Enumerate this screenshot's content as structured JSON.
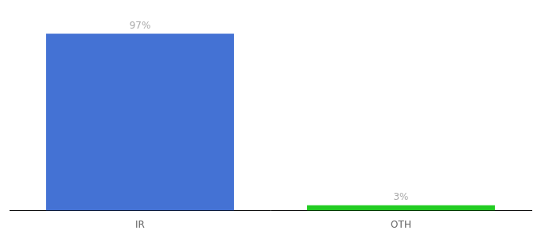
{
  "chart_data": {
    "type": "bar",
    "categories": [
      "IR",
      "OTH"
    ],
    "values": [
      97,
      3
    ],
    "value_labels": [
      "97%",
      "3%"
    ],
    "colors": [
      "#4472d4",
      "#22cc22"
    ],
    "ylim": [
      0,
      105
    ],
    "grid": false,
    "data_labels": true,
    "tick_labels": "x"
  }
}
